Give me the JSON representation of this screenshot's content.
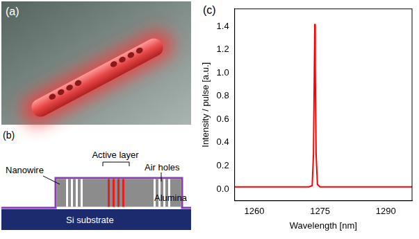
{
  "panel_a": {
    "panel_label": "(a)"
  },
  "panel_b": {
    "panel_label": "(b)",
    "labels": {
      "nanowire": "Nanowire",
      "active_layer": "Active layer",
      "air_holes": "Air holes",
      "alumina": "Alumina",
      "substrate": "Si substrate"
    }
  },
  "chart_data": {
    "panel_label": "(c)",
    "type": "line",
    "x_label": "Wavelength [nm]",
    "y_label": "Intensity / pulse [a.u.]",
    "x": [
      1255.5,
      1260,
      1265,
      1270,
      1272.5,
      1273.2,
      1273.5,
      1273.7,
      1273.8,
      1273.9,
      1274.1,
      1274.4,
      1275,
      1280,
      1285,
      1290,
      1296
    ],
    "values": [
      0.02,
      0.02,
      0.02,
      0.02,
      0.02,
      0.03,
      0.3,
      1.05,
      1.42,
      1.05,
      0.3,
      0.04,
      0.02,
      0.02,
      0.02,
      0.02,
      0.02
    ],
    "color": "#ff0000",
    "xlim": [
      1255.5,
      1296
    ],
    "xticks": [
      1260,
      1275,
      1290
    ],
    "ylim": [
      -0.1,
      1.55
    ],
    "yticks": [
      {
        "value": 0,
        "label": "0.0"
      },
      0.2,
      0.4,
      0.6,
      0.8,
      {
        "value": 1,
        "label": "1.0"
      },
      1.2,
      1.4
    ],
    "grid": false
  }
}
